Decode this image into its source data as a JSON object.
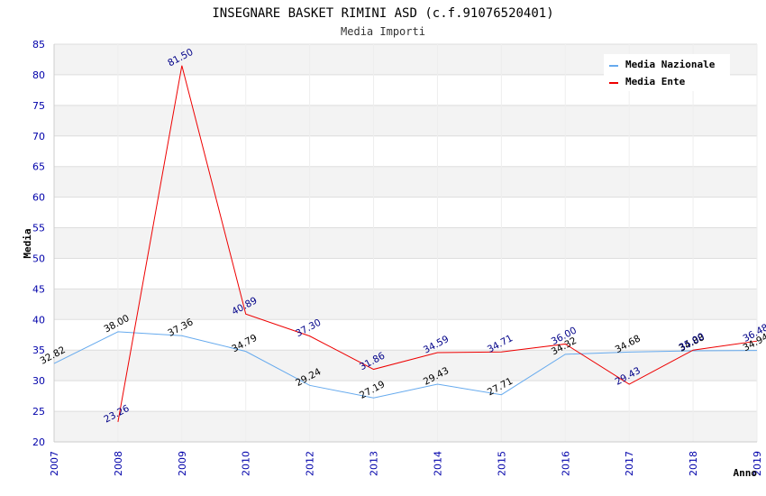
{
  "chart_data": {
    "type": "line",
    "title": "INSEGNARE BASKET RIMINI ASD (c.f.91076520401)",
    "subtitle": "Media Importi",
    "xlabel": "Anno",
    "ylabel": "Media",
    "ylim": [
      20,
      85
    ],
    "yticks": [
      20,
      25,
      30,
      35,
      40,
      45,
      50,
      55,
      60,
      65,
      70,
      75,
      80,
      85
    ],
    "categories": [
      "2007",
      "2008",
      "2009",
      "2010",
      "2012",
      "2013",
      "2014",
      "2015",
      "2016",
      "2017",
      "2018",
      "2019"
    ],
    "grid": true,
    "legend_position": "top-right",
    "series": [
      {
        "name": "Media Nazionale",
        "color": "#66aaee",
        "label_color": "#000000",
        "values": [
          32.82,
          38.0,
          37.36,
          34.79,
          29.24,
          27.19,
          29.43,
          27.71,
          34.32,
          34.68,
          34.88,
          34.94
        ],
        "labels": [
          "32.82",
          "38.00",
          "37.36",
          "34.79",
          "29.24",
          "27.19",
          "29.43",
          "27.71",
          "34.32",
          "34.68",
          "34.88",
          "34.94"
        ]
      },
      {
        "name": "Media Ente",
        "color": "#ee0000",
        "label_color": "#000088",
        "values": [
          null,
          23.26,
          81.5,
          40.89,
          37.3,
          31.86,
          34.59,
          34.71,
          36.0,
          29.43,
          35.0,
          36.48
        ],
        "labels": [
          null,
          "23.26",
          "81.50",
          "40.89",
          "37.30",
          "31.86",
          "34.59",
          "34.71",
          "36.00",
          "29.43",
          "35.00",
          "36.48"
        ]
      }
    ]
  }
}
